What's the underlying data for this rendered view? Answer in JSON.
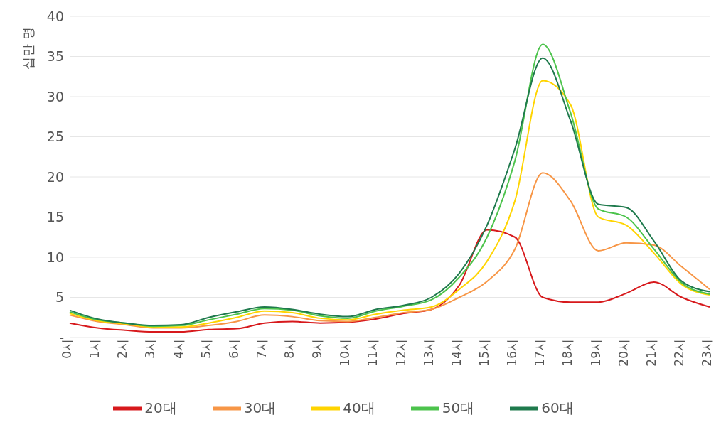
{
  "chart_data": {
    "type": "line",
    "ylabel": "십만 명",
    "categories": [
      "0시",
      "1시",
      "2시",
      "3시",
      "4시",
      "5시",
      "6시",
      "7시",
      "8시",
      "9시",
      "10시",
      "11시",
      "12시",
      "13시",
      "14시",
      "15시",
      "16시",
      "17시",
      "18시",
      "19시",
      "20시",
      "21시",
      "22시",
      "23시"
    ],
    "series": [
      {
        "name": "20대",
        "color": "#d7191c",
        "values": [
          1.8,
          1.2,
          0.9,
          0.7,
          0.7,
          1.0,
          1.1,
          1.8,
          2.0,
          1.8,
          1.9,
          2.3,
          3.0,
          3.5,
          6.5,
          13.4,
          12.5,
          5.0,
          4.4,
          4.4,
          5.5,
          6.9,
          5.0,
          3.8
        ]
      },
      {
        "name": "30대",
        "color": "#f79646",
        "values": [
          2.8,
          2.0,
          1.6,
          1.2,
          1.2,
          1.5,
          2.0,
          2.8,
          2.6,
          2.1,
          2.0,
          2.5,
          3.1,
          3.5,
          5.0,
          7.0,
          11.0,
          20.5,
          17.0,
          10.8,
          11.8,
          11.5,
          8.8,
          6.0
        ]
      },
      {
        "name": "40대",
        "color": "#ffd400",
        "values": [
          3.0,
          2.1,
          1.7,
          1.3,
          1.3,
          1.8,
          2.5,
          3.3,
          3.1,
          2.4,
          2.2,
          2.9,
          3.4,
          3.8,
          6.0,
          9.5,
          17.0,
          32.0,
          29.0,
          15.0,
          14.0,
          10.5,
          6.6,
          5.3
        ]
      },
      {
        "name": "50대",
        "color": "#4cc34c",
        "values": [
          3.2,
          2.2,
          1.8,
          1.4,
          1.5,
          2.2,
          2.9,
          3.6,
          3.4,
          2.7,
          2.4,
          3.3,
          3.9,
          4.7,
          7.5,
          12.5,
          22.0,
          36.5,
          28.0,
          16.0,
          15.0,
          11.0,
          6.8,
          5.4
        ]
      },
      {
        "name": "60대",
        "color": "#1f7a4d",
        "values": [
          3.4,
          2.3,
          1.8,
          1.5,
          1.6,
          2.5,
          3.2,
          3.8,
          3.5,
          2.9,
          2.6,
          3.5,
          4.0,
          5.0,
          8.0,
          14.0,
          23.5,
          34.8,
          27.0,
          16.6,
          16.2,
          12.0,
          7.0,
          5.7
        ]
      }
    ],
    "ylim": [
      0,
      40
    ],
    "yticks": [
      {
        "value": 0,
        "label": "-"
      },
      5,
      10,
      15,
      20,
      25,
      30,
      35,
      40
    ],
    "grid": "y",
    "legend": "bottom",
    "marker": "none",
    "line_style": "solid"
  }
}
